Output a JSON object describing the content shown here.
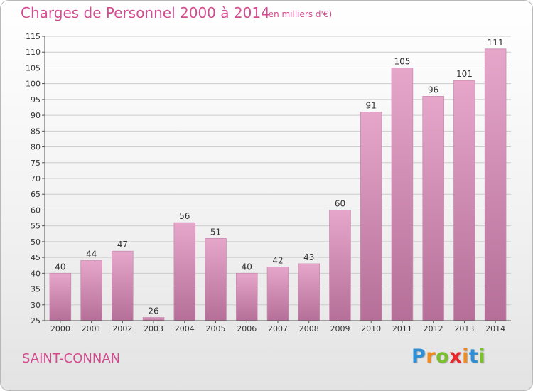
{
  "header": {
    "title": "Charges de Personnel 2000 à 2014",
    "subtitle": "(en milliers d'€)"
  },
  "footer": {
    "commune": "SAINT-CONNAN",
    "brand": [
      "P",
      "r",
      "o",
      "x",
      "i",
      "t",
      "i"
    ],
    "brand_colors": [
      "#2e8fd6",
      "#f28b1e",
      "#7bbf2e",
      "#e8262b",
      "#f28b1e",
      "#2e8fd6",
      "#7bbf2e"
    ]
  },
  "colors": {
    "bar_top": "#e6a6ca",
    "bar_bottom": "#b56f98",
    "bar_stroke": "#c98bb0",
    "grid": "#cccccc",
    "axis": "#555555",
    "text": "#333333"
  },
  "chart_data": {
    "type": "bar",
    "categories": [
      "2000",
      "2001",
      "2002",
      "2003",
      "2004",
      "2005",
      "2006",
      "2007",
      "2008",
      "2009",
      "2010",
      "2011",
      "2012",
      "2013",
      "2014"
    ],
    "values": [
      40,
      44,
      47,
      26,
      56,
      51,
      40,
      42,
      43,
      60,
      91,
      105,
      96,
      101,
      111
    ],
    "title": "Charges de Personnel 2000 à 2014",
    "ylim": [
      25,
      115
    ],
    "yticks": [
      25,
      30,
      35,
      40,
      45,
      50,
      55,
      60,
      65,
      70,
      75,
      80,
      85,
      90,
      95,
      100,
      105,
      110,
      115
    ],
    "grid": true,
    "legend": "none"
  }
}
